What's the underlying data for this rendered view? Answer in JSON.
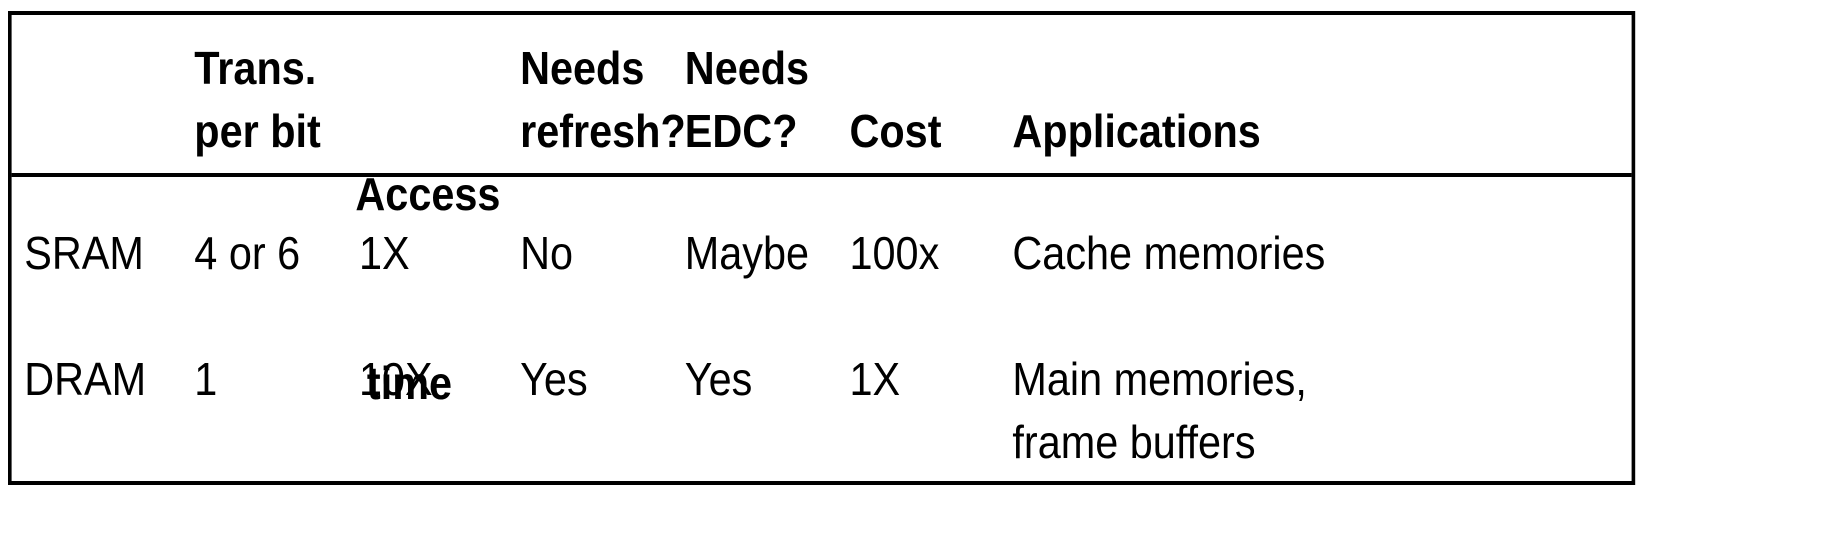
{
  "headers": {
    "trans_per_bit": [
      "Trans.",
      "per bit"
    ],
    "access_time": [
      "Access",
      " time"
    ],
    "needs_refresh": [
      "Needs",
      "refresh?"
    ],
    "needs_edc": [
      "Needs",
      "EDC?"
    ],
    "cost": "Cost",
    "applications": "Applications"
  },
  "rows": [
    {
      "type": "SRAM",
      "trans_per_bit": "4 or 6",
      "access_time": "1X",
      "needs_refresh": "No",
      "needs_edc": "Maybe",
      "cost": "100x",
      "applications": [
        "Cache memories"
      ]
    },
    {
      "type": "DRAM",
      "trans_per_bit": "1",
      "access_time": "10X",
      "needs_refresh": "Yes",
      "needs_edc": "Yes",
      "cost": "1X",
      "applications": [
        "Main memories,",
        "frame buffers"
      ]
    }
  ]
}
